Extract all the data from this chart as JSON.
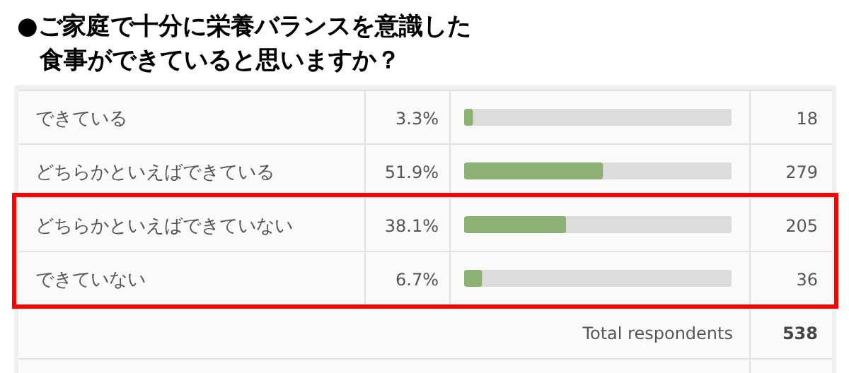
{
  "chart_data": {
    "type": "bar",
    "orientation": "horizontal",
    "title": "●ご家庭で十分に栄養バランスを意識した食事ができていると思いますか？",
    "categories": [
      "できている",
      "どちらかといえばできている",
      "どちらかといえばできていない",
      "できていない"
    ],
    "values": [
      3.3,
      51.9,
      38.1,
      6.7
    ],
    "value_labels": [
      "3.3%",
      "51.9%",
      "38.1%",
      "6.7%"
    ],
    "color": "#8db173",
    "xlim": [
      0,
      100
    ],
    "grid": true,
    "bands": [
      {
        "axis": "y",
        "from": "どちらかといえばできていない",
        "to": "できていない",
        "color": "#ff0000"
      }
    ],
    "annotations": [
      "18",
      "279",
      "205",
      "36",
      "Total respondents",
      "538"
    ]
  }
}
